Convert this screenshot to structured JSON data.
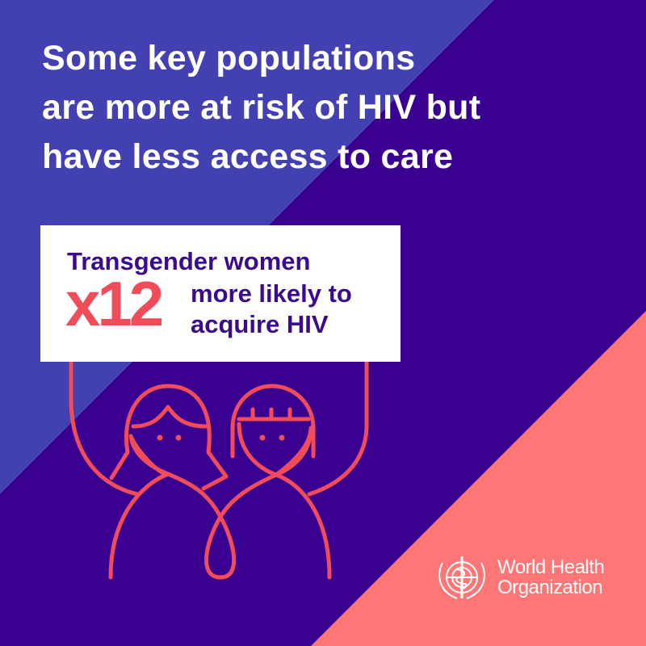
{
  "headline": [
    "Some key populations",
    "are more at risk of HIV but",
    "have less access to care"
  ],
  "sign": {
    "population": "Transgender women",
    "multiplier": "x12",
    "line1": "more likely to",
    "line2": "acquire HIV"
  },
  "logo": {
    "name_line1": "World Health",
    "name_line2": "Organization",
    "icon": "who-emblem-icon"
  },
  "colors": {
    "light_violet": "#4340b2",
    "dark_purple": "#3a0090",
    "salmon": "#ff7676",
    "accent_red": "#f04c5a",
    "text_purple": "#3a0a8f"
  }
}
